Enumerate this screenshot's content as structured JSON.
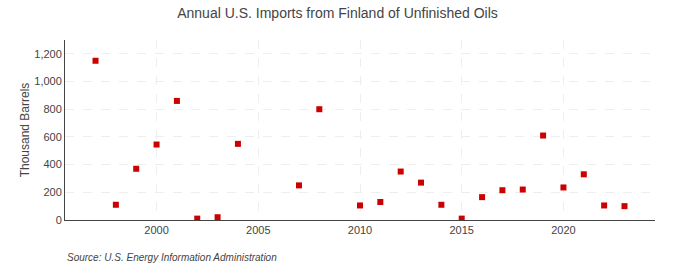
{
  "chart_data": {
    "type": "scatter",
    "title": "Annual U.S. Imports from Finland of Unfinished Oils",
    "y_label": "Thousand Barrels",
    "annotations": [
      "Source: U.S. Energy Information Administration"
    ],
    "x": [
      1997,
      1998,
      1999,
      2000,
      2001,
      2002,
      2003,
      2004,
      2007,
      2008,
      2010,
      2011,
      2012,
      2013,
      2014,
      2015,
      2016,
      2017,
      2018,
      2019,
      2020,
      2021,
      2022,
      2023
    ],
    "values": [
      1150,
      110,
      370,
      545,
      860,
      10,
      20,
      550,
      250,
      800,
      105,
      130,
      350,
      270,
      110,
      10,
      165,
      215,
      220,
      610,
      235,
      330,
      105,
      100
    ],
    "color": "#cc0000",
    "marker": "square",
    "xlim": [
      1995.5,
      2024.5
    ],
    "xticks": [
      2000,
      2005,
      2010,
      2015,
      2020
    ],
    "ylim": [
      0,
      1300
    ],
    "yticks": [
      0,
      200,
      400,
      600,
      800,
      {
        "value": 1000,
        "label": "1,000"
      },
      {
        "value": 1200,
        "label": "1,200"
      }
    ],
    "grid": true
  }
}
